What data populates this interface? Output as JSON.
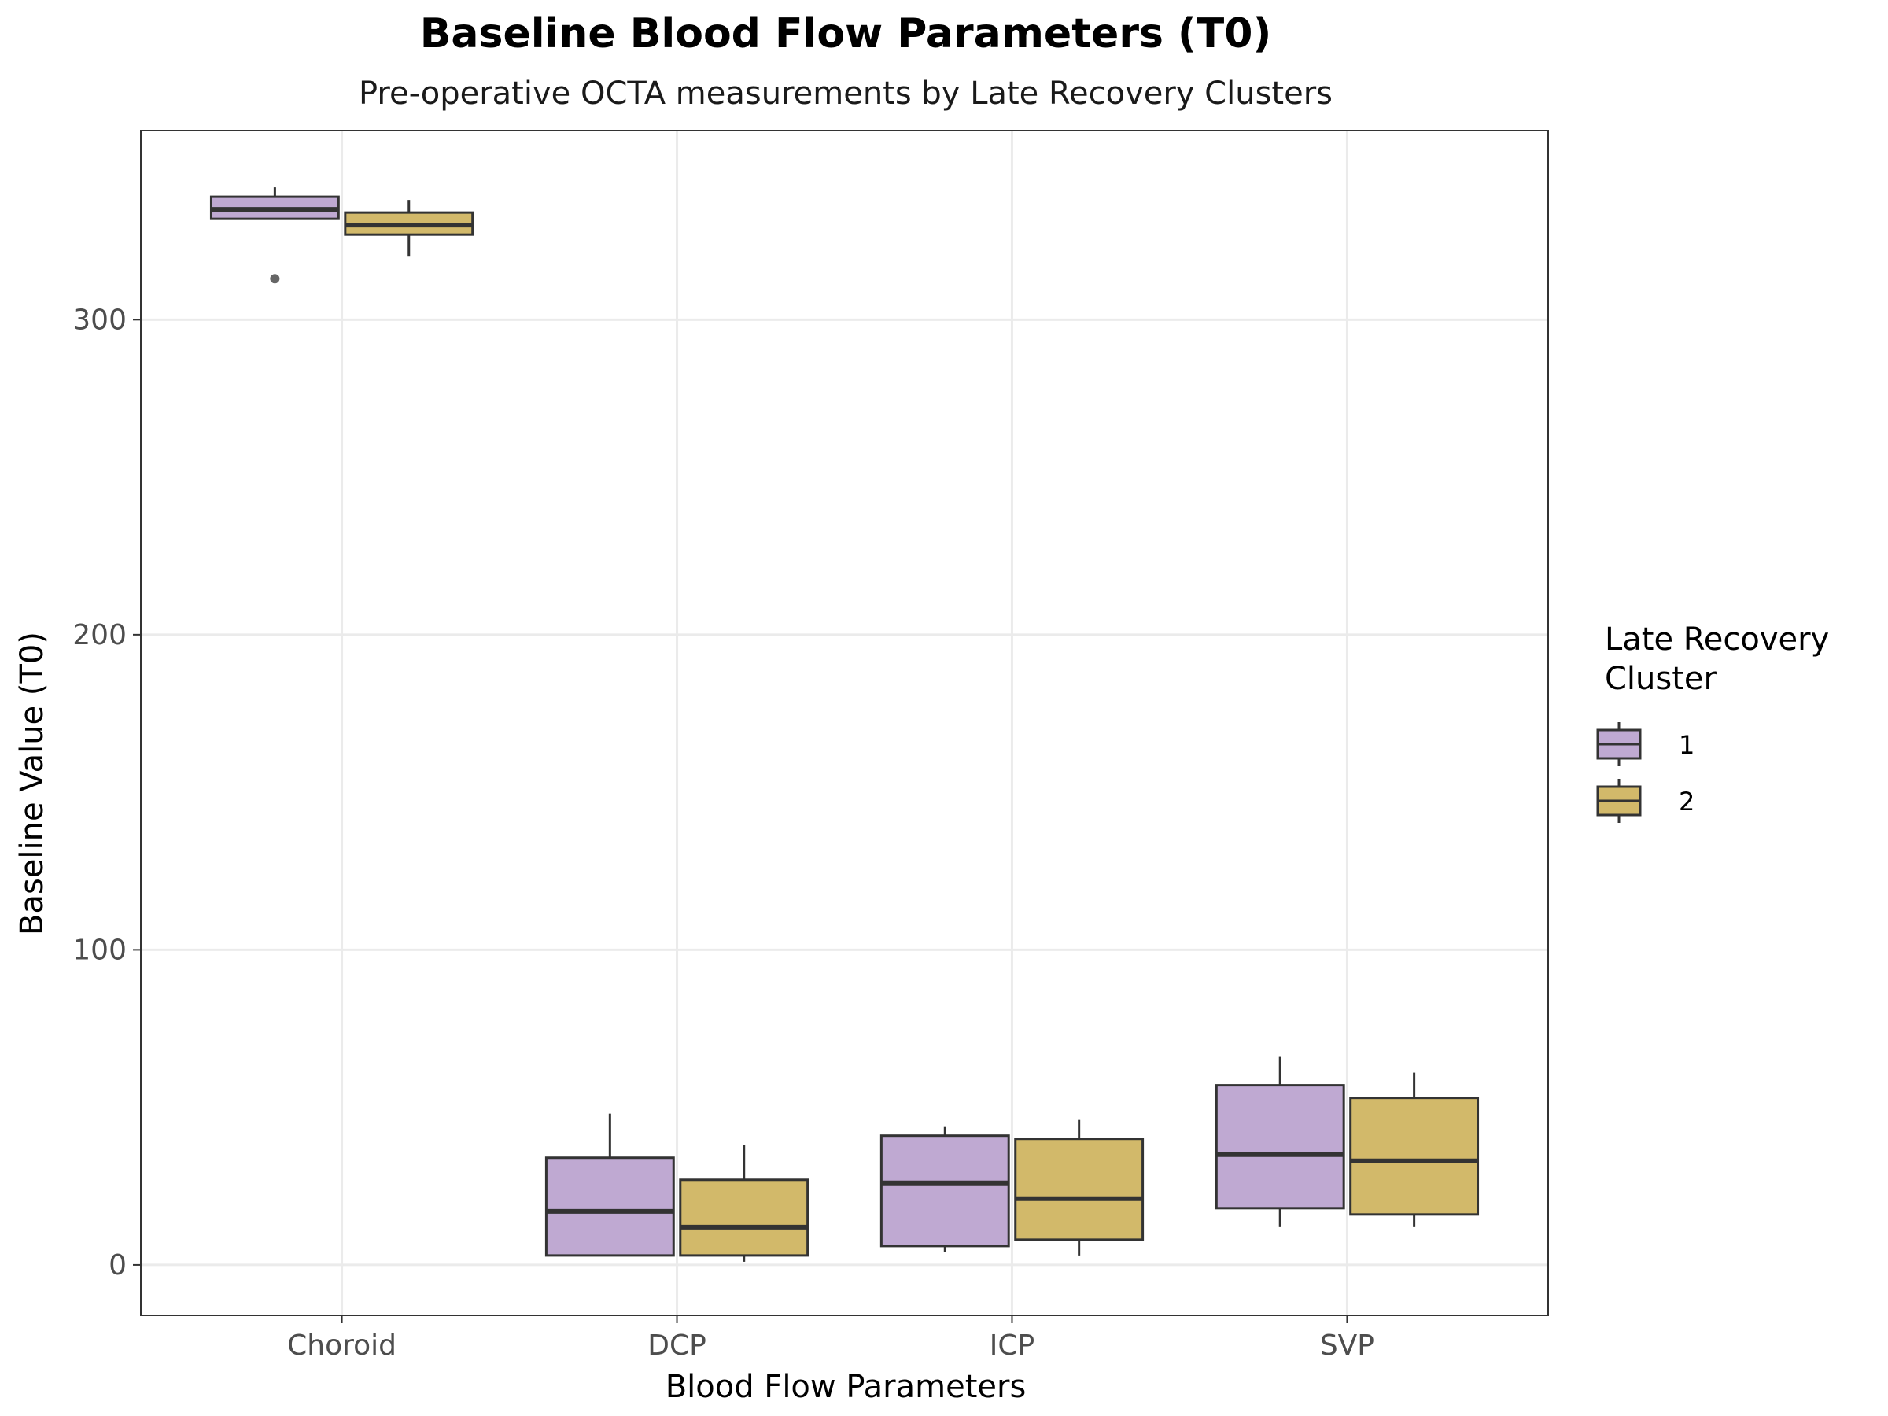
{
  "chart_data": {
    "type": "box",
    "title": "Baseline Blood Flow Parameters (T0)",
    "subtitle": "Pre-operative OCTA measurements by Late Recovery Clusters",
    "xlabel": "Blood Flow Parameters",
    "ylabel": "Baseline Value (T0)",
    "ylim": [
      -16,
      360
    ],
    "yticks": [
      0,
      100,
      200,
      300
    ],
    "categories": [
      "Choroid",
      "DCP",
      "ICP",
      "SVP"
    ],
    "grid": true,
    "legend": {
      "title_lines": [
        "Late Recovery",
        "Cluster"
      ],
      "placement": "right"
    },
    "series": [
      {
        "name": "1",
        "color": "#bfa9d2",
        "boxes": [
          {
            "whisker_low": 332,
            "q1": 332,
            "median": 335,
            "q3": 339,
            "whisker_high": 342,
            "outliers": [
              313
            ]
          },
          {
            "whisker_low": 3,
            "q1": 3,
            "median": 17,
            "q3": 34,
            "whisker_high": 48,
            "outliers": []
          },
          {
            "whisker_low": 4,
            "q1": 6,
            "median": 26,
            "q3": 41,
            "whisker_high": 44,
            "outliers": []
          },
          {
            "whisker_low": 12,
            "q1": 18,
            "median": 35,
            "q3": 57,
            "whisker_high": 66,
            "outliers": []
          }
        ]
      },
      {
        "name": "2",
        "color": "#d2b96a",
        "boxes": [
          {
            "whisker_low": 320,
            "q1": 327,
            "median": 330,
            "q3": 334,
            "whisker_high": 338,
            "outliers": []
          },
          {
            "whisker_low": 1,
            "q1": 3,
            "median": 12,
            "q3": 27,
            "whisker_high": 38,
            "outliers": []
          },
          {
            "whisker_low": 3,
            "q1": 8,
            "median": 21,
            "q3": 40,
            "whisker_high": 46,
            "outliers": []
          },
          {
            "whisker_low": 12,
            "q1": 16,
            "median": 33,
            "q3": 53,
            "whisker_high": 61,
            "outliers": []
          }
        ]
      }
    ]
  }
}
